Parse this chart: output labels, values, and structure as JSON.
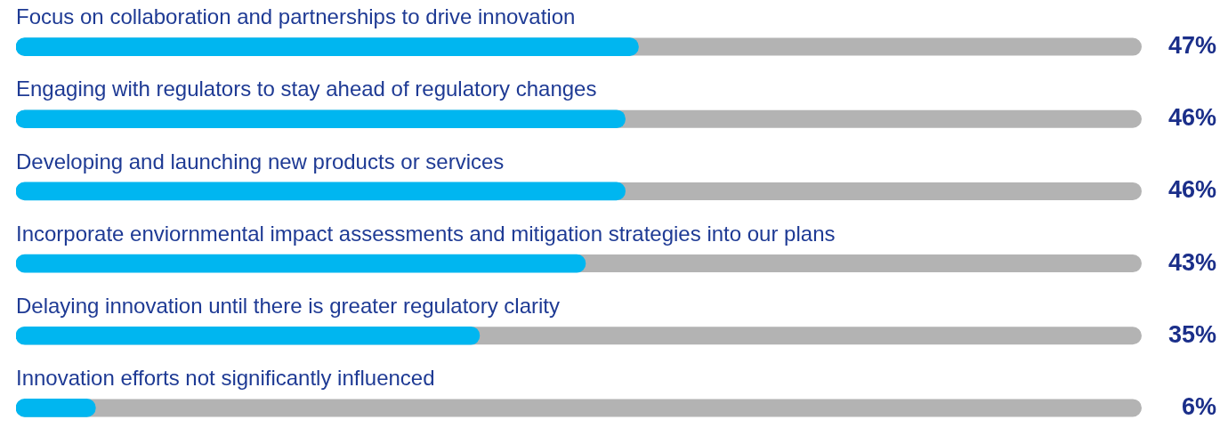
{
  "chart_data": {
    "type": "bar",
    "orientation": "horizontal",
    "categories": [
      "Focus on collaboration and partnerships to drive innovation",
      "Engaging with regulators to stay ahead of regulatory changes",
      "Developing and launching new products or services",
      "Incorporate enviornmental impact assessments and mitigation strategies into our plans",
      "Delaying innovation until there is greater regulatory clarity",
      "Innovation efforts not significantly influenced"
    ],
    "values": [
      47,
      46,
      46,
      43,
      35,
      6
    ],
    "value_labels": [
      "47%",
      "46%",
      "46%",
      "43%",
      "35%",
      "6%"
    ],
    "color": "#00b6f0",
    "xlim": [
      0,
      85
    ],
    "tick_labels": false,
    "legend": false
  }
}
